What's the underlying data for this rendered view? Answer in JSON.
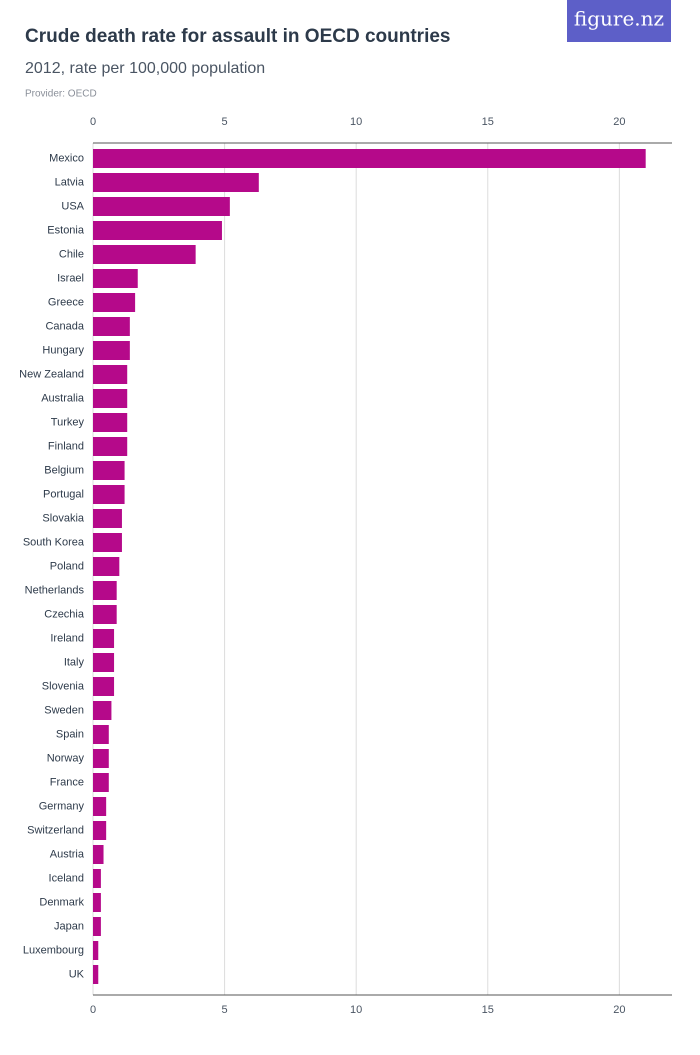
{
  "logo": "figure.nz",
  "chart_data": {
    "type": "barh",
    "title": "Crude death rate for assault in OECD countries",
    "subtitle": "2012, rate per 100,000 population",
    "provider": "Provider: OECD",
    "categories": [
      "Mexico",
      "Latvia",
      "USA",
      "Estonia",
      "Chile",
      "Israel",
      "Greece",
      "Canada",
      "Hungary",
      "New Zealand",
      "Australia",
      "Turkey",
      "Finland",
      "Belgium",
      "Portugal",
      "Slovakia",
      "South Korea",
      "Poland",
      "Netherlands",
      "Czechia",
      "Ireland",
      "Italy",
      "Slovenia",
      "Sweden",
      "Spain",
      "Norway",
      "France",
      "Germany",
      "Switzerland",
      "Austria",
      "Iceland",
      "Denmark",
      "Japan",
      "Luxembourg",
      "UK"
    ],
    "values": [
      21.0,
      6.3,
      5.2,
      4.9,
      3.9,
      1.7,
      1.6,
      1.4,
      1.4,
      1.3,
      1.3,
      1.3,
      1.3,
      1.2,
      1.2,
      1.1,
      1.1,
      1.0,
      0.9,
      0.9,
      0.8,
      0.8,
      0.8,
      0.7,
      0.6,
      0.6,
      0.6,
      0.5,
      0.5,
      0.4,
      0.3,
      0.3,
      0.3,
      0.2,
      0.2
    ],
    "color": "#b5098a",
    "xlim": [
      0,
      22
    ],
    "xticks": [
      0,
      5,
      10,
      15,
      20
    ],
    "grid": true
  }
}
